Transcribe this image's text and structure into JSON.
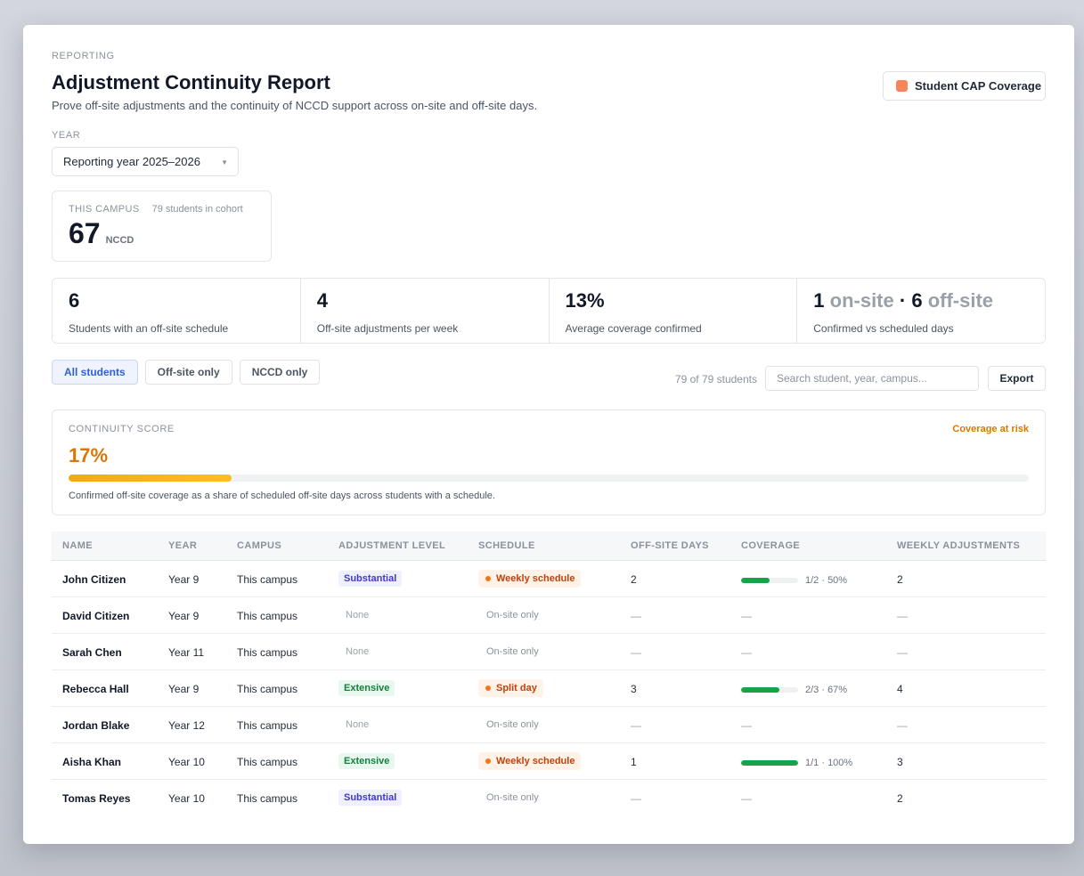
{
  "header": {
    "eyebrow": "REPORTING",
    "title": "Adjustment Continuity Report",
    "subtitle": "Prove off-site adjustments and the continuity of NCCD support across on-site and off-site days.",
    "cap_button_label": "Student CAP Coverage"
  },
  "year": {
    "label": "YEAR",
    "selected": "Reporting year 2025–2026"
  },
  "campus": {
    "label": "THIS CAMPUS",
    "cohort": "79 students in cohort",
    "value": "67",
    "unit": "NCCD"
  },
  "stats": [
    {
      "value": "6",
      "label": "Students with an off-site schedule"
    },
    {
      "value": "4",
      "label": "Off-site adjustments per week"
    },
    {
      "value": "13%",
      "label": "Average coverage confirmed"
    },
    {
      "onsite_value": "1",
      "onsite_label": "on-site",
      "separator": "·",
      "offsite_value": "6",
      "offsite_label": "off-site",
      "label": "Confirmed vs scheduled days"
    }
  ],
  "filters": [
    "All students",
    "Off-site only",
    "NCCD only"
  ],
  "active_filter": "All students",
  "toolbar": {
    "count": "79 of 79 students",
    "search_placeholder": "Search student, year, campus...",
    "export_label": "Export"
  },
  "score": {
    "label": "CONTINUITY SCORE",
    "status": "Coverage at risk",
    "value_label": "17%",
    "value": 0.17,
    "note": "Confirmed off-site coverage as a share of scheduled off-site days across students with a schedule."
  },
  "table": {
    "columns": [
      "NAME",
      "YEAR",
      "CAMPUS",
      "ADJUSTMENT LEVEL",
      "SCHEDULE",
      "OFF-SITE DAYS",
      "COVERAGE",
      "WEEKLY ADJUSTMENTS"
    ],
    "rows": [
      {
        "name": "John Citizen",
        "year": "Year 9",
        "campus": "This campus",
        "level": "Substantial",
        "level_type": "substantial",
        "schedule": "Weekly schedule",
        "schedule_type": "offsite",
        "offsite_days": "2",
        "coverage_text": "1/2 · 50%",
        "coverage_value": 0.5,
        "weekly": "2"
      },
      {
        "name": "David Citizen",
        "year": "Year 9",
        "campus": "This campus",
        "level": "None",
        "level_type": "none",
        "schedule": "On-site only",
        "schedule_type": "onsite",
        "offsite_days": "—",
        "coverage_text": "—",
        "coverage_value": null,
        "weekly": "—"
      },
      {
        "name": "Sarah Chen",
        "year": "Year 11",
        "campus": "This campus",
        "level": "None",
        "level_type": "none",
        "schedule": "On-site only",
        "schedule_type": "onsite",
        "offsite_days": "—",
        "coverage_text": "—",
        "coverage_value": null,
        "weekly": "—"
      },
      {
        "name": "Rebecca Hall",
        "year": "Year 9",
        "campus": "This campus",
        "level": "Extensive",
        "level_type": "extensive",
        "schedule": "Split day",
        "schedule_type": "offsite",
        "offsite_days": "3",
        "coverage_text": "2/3 · 67%",
        "coverage_value": 0.67,
        "weekly": "4"
      },
      {
        "name": "Jordan Blake",
        "year": "Year 12",
        "campus": "This campus",
        "level": "None",
        "level_type": "none",
        "schedule": "On-site only",
        "schedule_type": "onsite",
        "offsite_days": "—",
        "coverage_text": "—",
        "coverage_value": null,
        "weekly": "—"
      },
      {
        "name": "Aisha Khan",
        "year": "Year 10",
        "campus": "This campus",
        "level": "Extensive",
        "level_type": "extensive",
        "schedule": "Weekly schedule",
        "schedule_type": "offsite",
        "offsite_days": "1",
        "coverage_text": "1/1 · 100%",
        "coverage_value": 1.0,
        "weekly": "3"
      },
      {
        "name": "Tomas Reyes",
        "year": "Year 10",
        "campus": "This campus",
        "level": "Substantial",
        "level_type": "substantial",
        "schedule": "On-site only",
        "schedule_type": "onsite",
        "offsite_days": "—",
        "coverage_text": "—",
        "coverage_value": null,
        "weekly": "2"
      }
    ]
  },
  "colors": {
    "accent": "#3060d8",
    "warning": "#d97706",
    "coverage_fill": "#16a34a",
    "cap_swatch": "#f7855b"
  }
}
